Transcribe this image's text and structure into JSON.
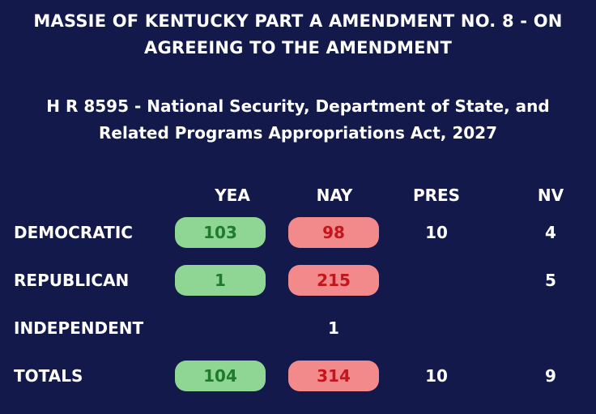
{
  "title_line1": "MASSIE OF KENTUCKY PART A AMENDMENT NO. 8 - ON",
  "title_line2": "AGREEING TO THE AMENDMENT",
  "bill_line1": "H R 8595 - National Security, Department of State, and",
  "bill_line2": "Related Programs Appropriations Act, 2027",
  "columns": {
    "yea": "YEA",
    "nay": "NAY",
    "pres": "PRES",
    "nv": "NV"
  },
  "rows": [
    {
      "label": "DEMOCRATIC",
      "yea": "103",
      "nay": "98",
      "pres": "10",
      "nv": "4"
    },
    {
      "label": "REPUBLICAN",
      "yea": "1",
      "nay": "215",
      "pres": "",
      "nv": "5"
    },
    {
      "label": "INDEPENDENT",
      "yea": "",
      "nay": "1",
      "pres": "",
      "nv": ""
    },
    {
      "label": "TOTALS",
      "yea": "104",
      "nay": "314",
      "pres": "10",
      "nv": "9"
    }
  ],
  "colors": {
    "background": "#13194a",
    "yea_fill": "#8fd694",
    "yea_text": "#1e7a2c",
    "nay_fill": "#f28a8c",
    "nay_text": "#c3151c"
  }
}
